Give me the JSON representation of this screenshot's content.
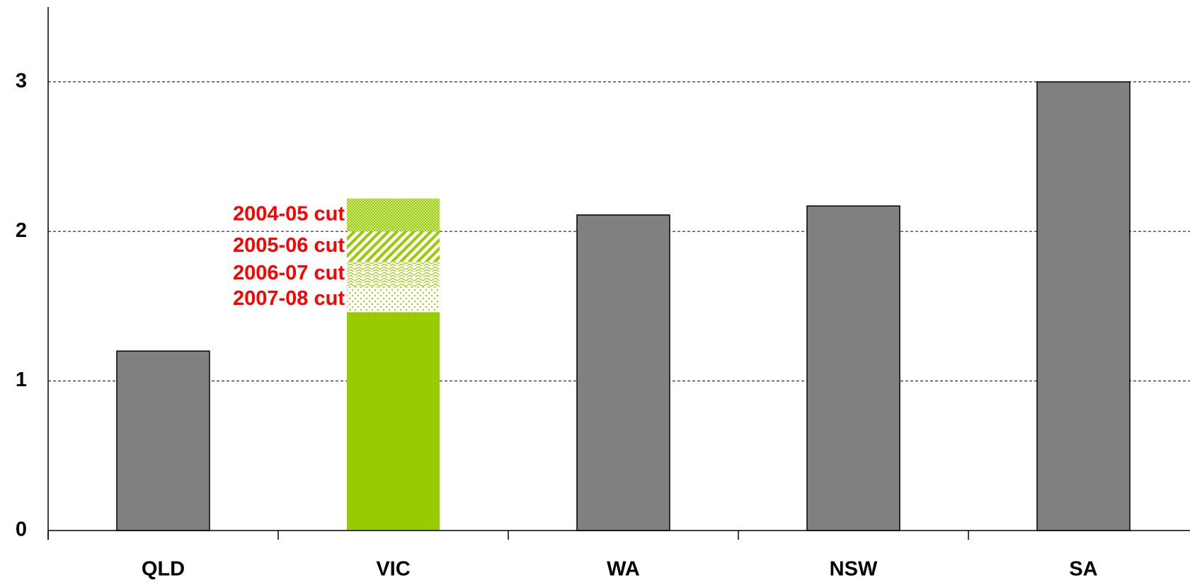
{
  "chart_data": {
    "type": "stacked_bar",
    "categories": [
      "QLD",
      "VIC",
      "WA",
      "NSW",
      "SA"
    ],
    "series": [
      {
        "colors": [
          "#808080",
          "#99cc00",
          "#808080",
          "#808080",
          "#808080"
        ],
        "values": [
          1.2,
          1.46,
          2.11,
          2.17,
          3.0
        ]
      },
      {
        "name": "2007-08 cut",
        "color": "#99cc00",
        "pattern": "dots",
        "values": [
          null,
          0.17,
          null,
          null,
          null
        ]
      },
      {
        "name": "2006-07 cut",
        "color": "#99cc00",
        "pattern": "waves",
        "values": [
          null,
          0.17,
          null,
          null,
          null
        ]
      },
      {
        "name": "2005-06 cut",
        "color": "#99cc00",
        "pattern": "stripes",
        "values": [
          null,
          0.2,
          null,
          null,
          null
        ]
      },
      {
        "name": "2004-05 cut",
        "color": "#99cc00",
        "pattern": "checker",
        "values": [
          null,
          0.22,
          null,
          null,
          null
        ]
      }
    ],
    "label_color": "#ff0000",
    "ylim": [
      0,
      3.5
    ],
    "yticks": [
      0,
      1,
      2,
      3
    ],
    "grid": true
  }
}
